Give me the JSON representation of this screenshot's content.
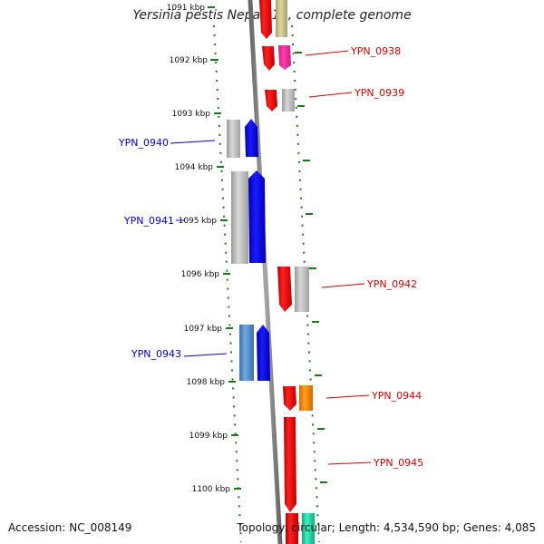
{
  "title": "Yersinia pestis Nepal516, complete genome",
  "footer": {
    "accession": "Accession: NC_008149",
    "summary": "Topology: circular; Length: 4,534,590 bp; Genes: 4,085"
  },
  "ticks": [
    {
      "label": "1091 kbp",
      "pos": 1091
    },
    {
      "label": "1092 kbp",
      "pos": 1092
    },
    {
      "label": "1093 kbp",
      "pos": 1093
    },
    {
      "label": "1094 kbp",
      "pos": 1094
    },
    {
      "label": "1095 kbp",
      "pos": 1095
    },
    {
      "label": "1096 kbp",
      "pos": 1096
    },
    {
      "label": "1097 kbp",
      "pos": 1097
    },
    {
      "label": "1098 kbp",
      "pos": 1098
    },
    {
      "label": "1099 kbp",
      "pos": 1099
    },
    {
      "label": "1100 kbp",
      "pos": 1100
    }
  ],
  "gene_labels": [
    {
      "id": "YPN_0938",
      "side": "right",
      "color": "#d40000"
    },
    {
      "id": "YPN_0939",
      "side": "right",
      "color": "#d40000"
    },
    {
      "id": "YPN_0940",
      "side": "left",
      "color": "#0000c8"
    },
    {
      "id": "YPN_0941",
      "side": "left",
      "color": "#0000c8"
    },
    {
      "id": "YPN_0942",
      "side": "right",
      "color": "#d40000"
    },
    {
      "id": "YPN_0943",
      "side": "left",
      "color": "#0000c8"
    },
    {
      "id": "YPN_0944",
      "side": "right",
      "color": "#d40000"
    },
    {
      "id": "YPN_0945",
      "side": "right",
      "color": "#d40000"
    }
  ],
  "colors": {
    "forward": "#ff0000",
    "reverse": "#0000ff",
    "backbone": "#808080",
    "tick": "#1a7a1a",
    "gray_feature": "#b8b8b8",
    "magenta_feature": "#ff2aa0",
    "orange_feature": "#ff8c00",
    "olive_feature": "#c8c080",
    "teal_feature": "#20d0a0",
    "steel_feature": "#4a86c0"
  }
}
